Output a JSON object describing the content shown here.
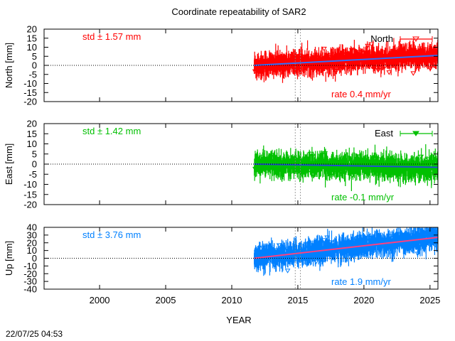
{
  "title": "Coordinate repeatability of SAR2",
  "xlabel": "YEAR",
  "timestamp": "22/07/25 04:53",
  "colors": {
    "north": "#ff0000",
    "east": "#00c000",
    "up": "#0080ff",
    "trend_north": "#3070ff",
    "trend_east": "#2050d0",
    "trend_up": "#ff4080"
  },
  "chart_data": [
    {
      "type": "scatter",
      "panel": "north",
      "ylabel": "North [mm]",
      "legend": "North",
      "std_label": "std ± 1.57 mm",
      "rate_label": "rate  0.4 mm/yr",
      "xlim": [
        1995.8,
        2025.6
      ],
      "ylim": [
        -20,
        20
      ],
      "yticks": [
        -20,
        -15,
        -10,
        -5,
        0,
        5,
        10,
        15,
        20
      ],
      "xticks": [
        2000,
        2005,
        2010,
        2015,
        2020,
        2025
      ],
      "data_start": 2011.7,
      "data_end": 2025.6,
      "trend": [
        [
          2011.7,
          0.0
        ],
        [
          2025.6,
          5.5
        ]
      ],
      "std": 1.57,
      "rate": 0.4,
      "grid": false,
      "legend_position": "top-right",
      "vlines": [
        2014.8,
        2015.2
      ]
    },
    {
      "type": "scatter",
      "panel": "east",
      "ylabel": "East [mm]",
      "legend": "East",
      "std_label": "std ± 1.42 mm",
      "rate_label": "rate -0.1 mm/yr",
      "xlim": [
        1995.8,
        2025.6
      ],
      "ylim": [
        -20,
        20
      ],
      "yticks": [
        -20,
        -15,
        -10,
        -5,
        0,
        5,
        10,
        15,
        20
      ],
      "xticks": [
        2000,
        2005,
        2010,
        2015,
        2020,
        2025
      ],
      "data_start": 2011.7,
      "data_end": 2025.6,
      "trend": [
        [
          2011.7,
          0.0
        ],
        [
          2025.6,
          -1.6
        ]
      ],
      "std": 1.42,
      "rate": -0.1,
      "grid": false,
      "legend_position": "top-right",
      "vlines": [
        2014.8,
        2015.2
      ]
    },
    {
      "type": "scatter",
      "panel": "up",
      "ylabel": "Up [mm]",
      "legend": "",
      "std_label": "std ± 3.76 mm",
      "rate_label": "rate  1.9 mm/yr",
      "xlim": [
        1995.8,
        2025.6
      ],
      "ylim": [
        -40,
        40
      ],
      "yticks": [
        -40,
        -30,
        -20,
        -10,
        0,
        10,
        20,
        30,
        40
      ],
      "xticks": [
        2000,
        2005,
        2010,
        2015,
        2020,
        2025
      ],
      "data_start": 2011.7,
      "data_end": 2025.6,
      "trend": [
        [
          2011.7,
          0.0
        ],
        [
          2025.6,
          27.0
        ]
      ],
      "std": 3.76,
      "rate": 1.9,
      "grid": false,
      "legend_position": "none",
      "vlines": [
        2014.8,
        2015.2
      ]
    }
  ]
}
